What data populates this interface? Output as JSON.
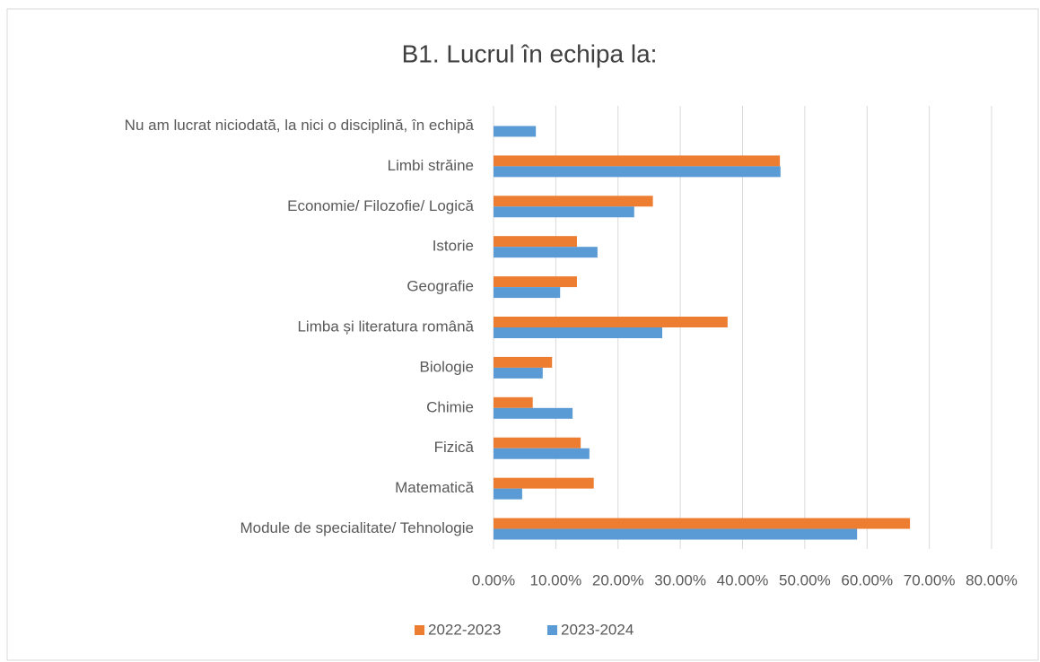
{
  "chart_data": {
    "type": "barh",
    "title": "B1. Lucrul în echipa la:",
    "categories": [
      "Nu am lucrat niciodată, la nici o disciplină, în echipă",
      "Limbi străine",
      "Economie/ Filozofie/ Logică",
      "Istorie",
      "Geografie",
      "Limba și literatura română",
      "Biologie",
      "Chimie",
      "Fizică",
      "Matematică",
      "Module de specialitate/ Tehnologie"
    ],
    "series": [
      {
        "name": "2022-2023",
        "color": "#ed7d31",
        "values": [
          null,
          46.0,
          25.6,
          13.4,
          13.4,
          37.6,
          9.4,
          6.3,
          14.0,
          16.1,
          66.9
        ]
      },
      {
        "name": "2023-2024",
        "color": "#5b9bd5",
        "values": [
          6.8,
          46.1,
          22.6,
          16.7,
          10.7,
          27.1,
          7.9,
          12.7,
          15.4,
          4.6,
          58.4
        ]
      }
    ],
    "xlim": [
      0,
      80
    ],
    "xticks": [
      {
        "value": 0,
        "label": "0.00%"
      },
      {
        "value": 10,
        "label": "10.00%"
      },
      {
        "value": 20,
        "label": "20.00%"
      },
      {
        "value": 30,
        "label": "30.00%"
      },
      {
        "value": 40,
        "label": "40.00%"
      },
      {
        "value": 50,
        "label": "50.00%"
      },
      {
        "value": 60,
        "label": "60.00%"
      },
      {
        "value": 70,
        "label": "70.00%"
      },
      {
        "value": 80,
        "label": "80.00%"
      }
    ],
    "grid": true,
    "legend": "bottom"
  }
}
